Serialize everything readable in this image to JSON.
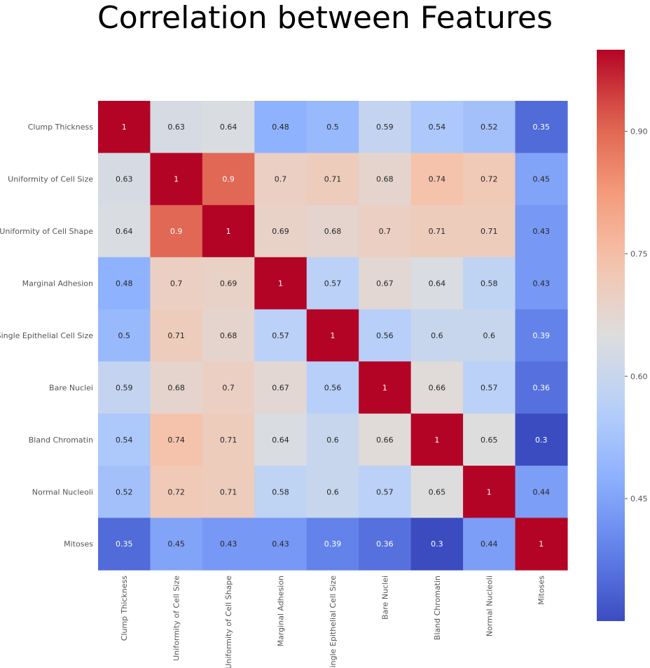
{
  "chart_data": {
    "type": "heatmap",
    "title": "Correlation between Features",
    "colormap": "coolwarm",
    "vmin": 0.3,
    "vmax": 1.0,
    "row_labels": [
      "Clump Thickness",
      "Uniformity of Cell Size",
      "Uniformity of Cell Shape",
      "Marginal Adhesion",
      "Single Epithelial Cell Size",
      "Bare Nuclei",
      "Bland Chromatin",
      "Normal Nucleoli",
      "Mitoses"
    ],
    "col_labels": [
      "Clump Thickness",
      "Uniformity of Cell Size",
      "Uniformity of Cell Shape",
      "Marginal Adhesion",
      "Single Epithelial Cell Size",
      "Bare Nuclei",
      "Bland Chromatin",
      "Normal Nucleoli",
      "Mitoses"
    ],
    "values": [
      [
        1,
        0.63,
        0.64,
        0.48,
        0.5,
        0.59,
        0.54,
        0.52,
        0.35
      ],
      [
        0.63,
        1,
        0.9,
        0.7,
        0.71,
        0.68,
        0.74,
        0.72,
        0.45
      ],
      [
        0.64,
        0.9,
        1,
        0.69,
        0.68,
        0.7,
        0.71,
        0.71,
        0.43
      ],
      [
        0.48,
        0.7,
        0.69,
        1,
        0.57,
        0.67,
        0.64,
        0.58,
        0.43
      ],
      [
        0.5,
        0.71,
        0.68,
        0.57,
        1,
        0.56,
        0.6,
        0.6,
        0.39
      ],
      [
        0.59,
        0.68,
        0.7,
        0.67,
        0.56,
        1,
        0.66,
        0.57,
        0.36
      ],
      [
        0.54,
        0.74,
        0.71,
        0.64,
        0.6,
        0.66,
        1,
        0.65,
        0.3
      ],
      [
        0.52,
        0.72,
        0.71,
        0.58,
        0.6,
        0.57,
        0.65,
        1,
        0.44
      ],
      [
        0.35,
        0.45,
        0.43,
        0.43,
        0.39,
        0.36,
        0.3,
        0.44,
        1
      ]
    ],
    "colorbar": {
      "ticks": [
        0.45,
        0.6,
        0.75,
        0.9
      ],
      "tick_labels": [
        "0.45",
        "0.60",
        "0.75",
        "0.90"
      ]
    }
  }
}
